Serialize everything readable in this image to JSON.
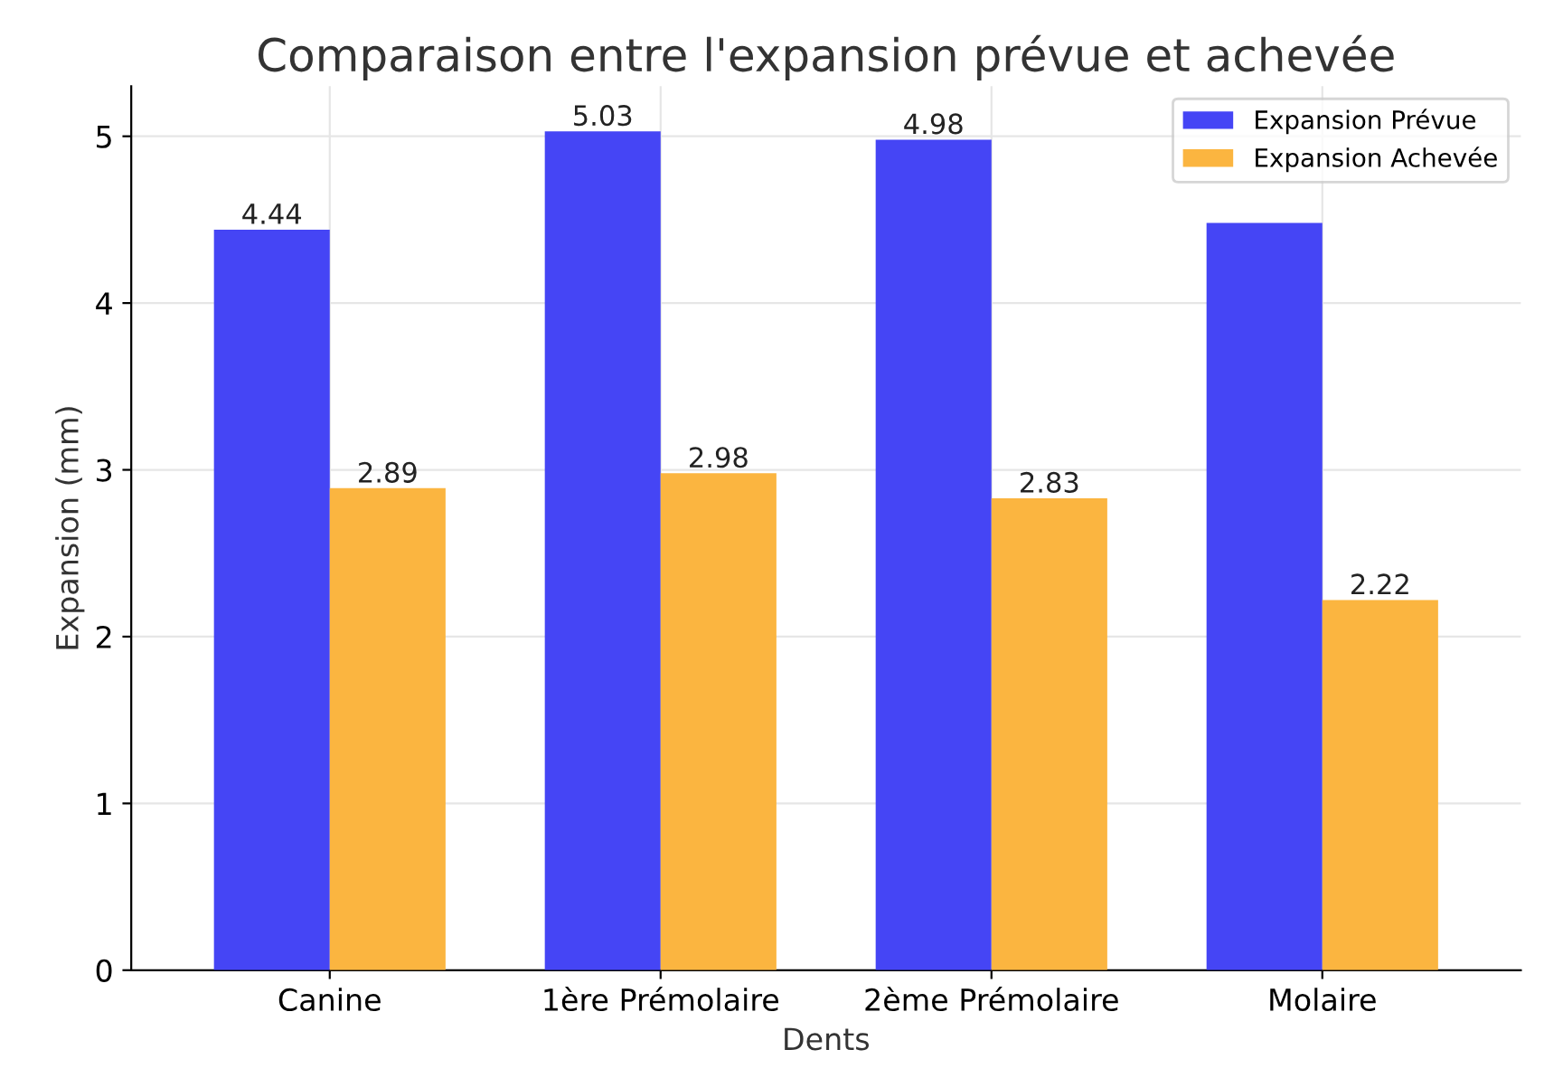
{
  "chart_data": {
    "type": "bar",
    "title": "Comparaison entre l'expansion prévue et achevée",
    "xlabel": "Dents",
    "ylabel": "Expansion (mm)",
    "categories": [
      "Canine",
      "1ère Prémolaire",
      "2ème Prémolaire",
      "Molaire"
    ],
    "series": [
      {
        "name": "Expansion Prévue",
        "color": "#4545f5",
        "values": [
          4.44,
          5.03,
          4.98,
          4.48
        ],
        "value_labels": [
          "4.44",
          "5.03",
          "4.98",
          null
        ]
      },
      {
        "name": "Expansion Achevée",
        "color": "#fbb540",
        "values": [
          2.89,
          2.98,
          2.83,
          2.22
        ],
        "value_labels": [
          "2.89",
          "2.98",
          "2.83",
          "2.22"
        ]
      }
    ],
    "ylim": [
      0,
      5.3
    ],
    "yticks": [
      0,
      1,
      2,
      3,
      4,
      5
    ],
    "grid": true,
    "legend": "top right"
  }
}
